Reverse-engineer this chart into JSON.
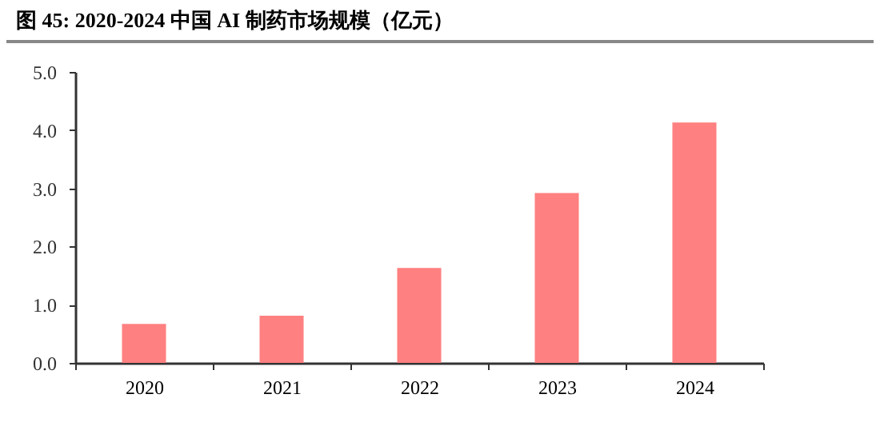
{
  "chart_data": {
    "type": "bar",
    "title": "图 45: 2020-2024 中国 AI 制药市场规模（亿元）",
    "categories": [
      "2020",
      "2021",
      "2022",
      "2023",
      "2024"
    ],
    "values": [
      0.67,
      0.81,
      1.63,
      2.92,
      4.13
    ],
    "color": "#ff8080",
    "ylim": [
      0,
      5
    ],
    "yticks": [
      {
        "value": 0,
        "label": "0.0"
      },
      {
        "value": 1,
        "label": "1.0"
      },
      {
        "value": 2,
        "label": "2.0"
      },
      {
        "value": 3,
        "label": "3.0"
      },
      {
        "value": 4,
        "label": "4.0"
      },
      {
        "value": 5,
        "label": "5.0"
      }
    ],
    "grid": false
  }
}
